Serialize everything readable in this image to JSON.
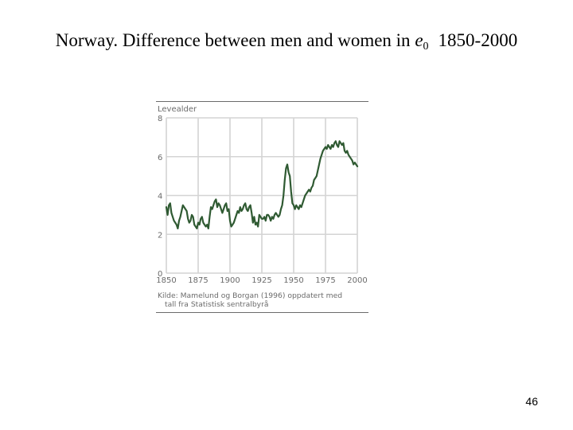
{
  "slide": {
    "title_main": "Norway. Difference between men and women in ",
    "title_var": "e",
    "title_sub": "0",
    "title_years": "1850-2000",
    "page_number": "46"
  },
  "chart_data": {
    "type": "line",
    "ylabel": "Levealder",
    "xlim": [
      1850,
      2000
    ],
    "ylim": [
      0,
      8
    ],
    "x_ticks": [
      1850,
      1875,
      1900,
      1925,
      1950,
      1975,
      2000
    ],
    "y_ticks": [
      0,
      2,
      4,
      6,
      8
    ],
    "grid": true,
    "source": [
      "Kilde: Mamelund og Borgan (1996) oppdatert med",
      "tall fra Statistisk sentralbyrå"
    ],
    "line_color": "#2f5a32",
    "series": [
      {
        "x": [
          1850,
          1851,
          1852,
          1853,
          1854,
          1855,
          1856,
          1857,
          1858,
          1859,
          1860,
          1861,
          1862,
          1863,
          1864,
          1865,
          1866,
          1867,
          1868,
          1869,
          1870,
          1871,
          1872,
          1873,
          1874,
          1875,
          1876,
          1877,
          1878,
          1879,
          1880,
          1881,
          1882,
          1883,
          1884,
          1885,
          1886,
          1887,
          1888,
          1889,
          1890,
          1891,
          1892,
          1893,
          1894,
          1895,
          1896,
          1897,
          1898,
          1899,
          1900,
          1901,
          1902,
          1903,
          1904,
          1905,
          1906,
          1907,
          1908,
          1909,
          1910,
          1911,
          1912,
          1913,
          1914,
          1915,
          1916,
          1917,
          1918,
          1919,
          1920,
          1921,
          1922,
          1923,
          1924,
          1925,
          1926,
          1927,
          1928,
          1929,
          1930,
          1931,
          1932,
          1933,
          1934,
          1935,
          1936,
          1937,
          1938,
          1939,
          1940,
          1941,
          1942,
          1943,
          1944,
          1945,
          1946,
          1947,
          1948,
          1949,
          1950,
          1951,
          1952,
          1953,
          1954,
          1955,
          1956,
          1957,
          1958,
          1959,
          1960,
          1961,
          1962,
          1963,
          1964,
          1965,
          1966,
          1967,
          1968,
          1969,
          1970,
          1971,
          1972,
          1973,
          1974,
          1975,
          1976,
          1977,
          1978,
          1979,
          1980,
          1981,
          1982,
          1983,
          1984,
          1985,
          1986,
          1987,
          1988,
          1989,
          1990,
          1991,
          1992,
          1993,
          1994,
          1995,
          1996,
          1997,
          1998,
          1999,
          2000
        ],
        "values": [
          3.4,
          3.0,
          3.5,
          3.6,
          3.1,
          2.9,
          2.7,
          2.6,
          2.5,
          2.3,
          2.7,
          2.9,
          3.2,
          3.5,
          3.4,
          3.3,
          3.2,
          2.8,
          2.6,
          2.7,
          3.0,
          2.9,
          2.5,
          2.4,
          2.3,
          2.6,
          2.5,
          2.8,
          2.9,
          2.6,
          2.5,
          2.4,
          2.5,
          2.3,
          2.9,
          3.4,
          3.3,
          3.5,
          3.7,
          3.8,
          3.4,
          3.6,
          3.5,
          3.3,
          3.1,
          3.3,
          3.5,
          3.6,
          3.2,
          3.3,
          2.7,
          2.4,
          2.5,
          2.6,
          2.8,
          3.0,
          3.2,
          3.1,
          3.4,
          3.2,
          3.3,
          3.5,
          3.6,
          3.3,
          3.2,
          3.4,
          3.5,
          3.1,
          2.6,
          2.9,
          2.5,
          2.6,
          2.4,
          3.0,
          2.9,
          2.8,
          2.8,
          2.9,
          2.7,
          3.0,
          3.0,
          2.9,
          2.7,
          2.9,
          2.8,
          3.0,
          3.1,
          3.0,
          2.9,
          3.0,
          3.3,
          3.5,
          4.0,
          4.8,
          5.4,
          5.6,
          5.2,
          5.0,
          4.2,
          3.6,
          3.5,
          3.3,
          3.5,
          3.4,
          3.3,
          3.5,
          3.4,
          3.6,
          3.8,
          4.0,
          4.1,
          4.2,
          4.3,
          4.2,
          4.4,
          4.5,
          4.8,
          4.9,
          5.0,
          5.3,
          5.6,
          5.9,
          6.1,
          6.3,
          6.4,
          6.5,
          6.4,
          6.6,
          6.5,
          6.4,
          6.6,
          6.5,
          6.7,
          6.8,
          6.6,
          6.5,
          6.8,
          6.7,
          6.6,
          6.7,
          6.3,
          6.2,
          6.3,
          6.1,
          6.0,
          5.9,
          5.8,
          5.6,
          5.7,
          5.6,
          5.5
        ]
      }
    ]
  }
}
